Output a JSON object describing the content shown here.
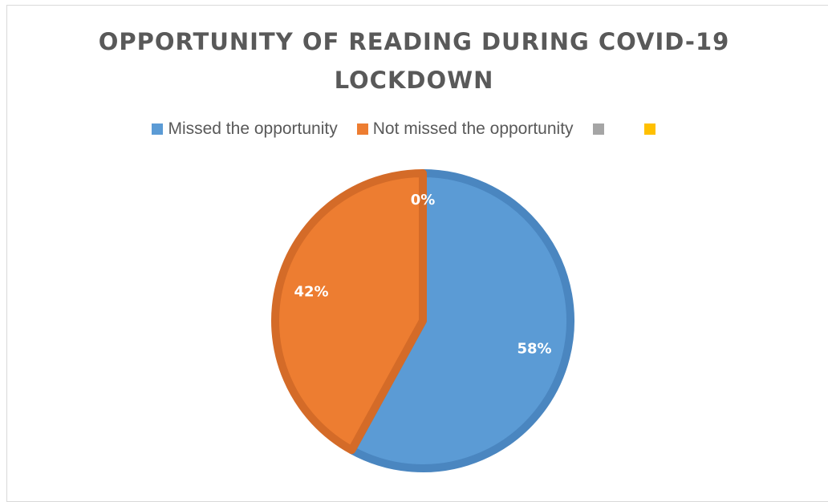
{
  "chart_data": {
    "type": "pie",
    "title": "OPPORTUNITY OF READING DURING COVID-19 LOCKDOWN",
    "title_lines": [
      "OPPORTUNITY OF READING DURING COVID-19",
      "LOCKDOWN"
    ],
    "legend_position": "top",
    "categories": [
      "Missed the opportunity",
      "Not missed the opportunity",
      "",
      ""
    ],
    "values": [
      58,
      42,
      0,
      0
    ],
    "data_labels": [
      "58%",
      "42%",
      "0%",
      ""
    ],
    "colors": [
      "#5b9bd5",
      "#ed7d31",
      "#a5a5a5",
      "#ffc000"
    ],
    "edge_colors": [
      "#4a86c0",
      "#d46b28",
      "#8f8f8f",
      "#e0a800"
    ]
  }
}
